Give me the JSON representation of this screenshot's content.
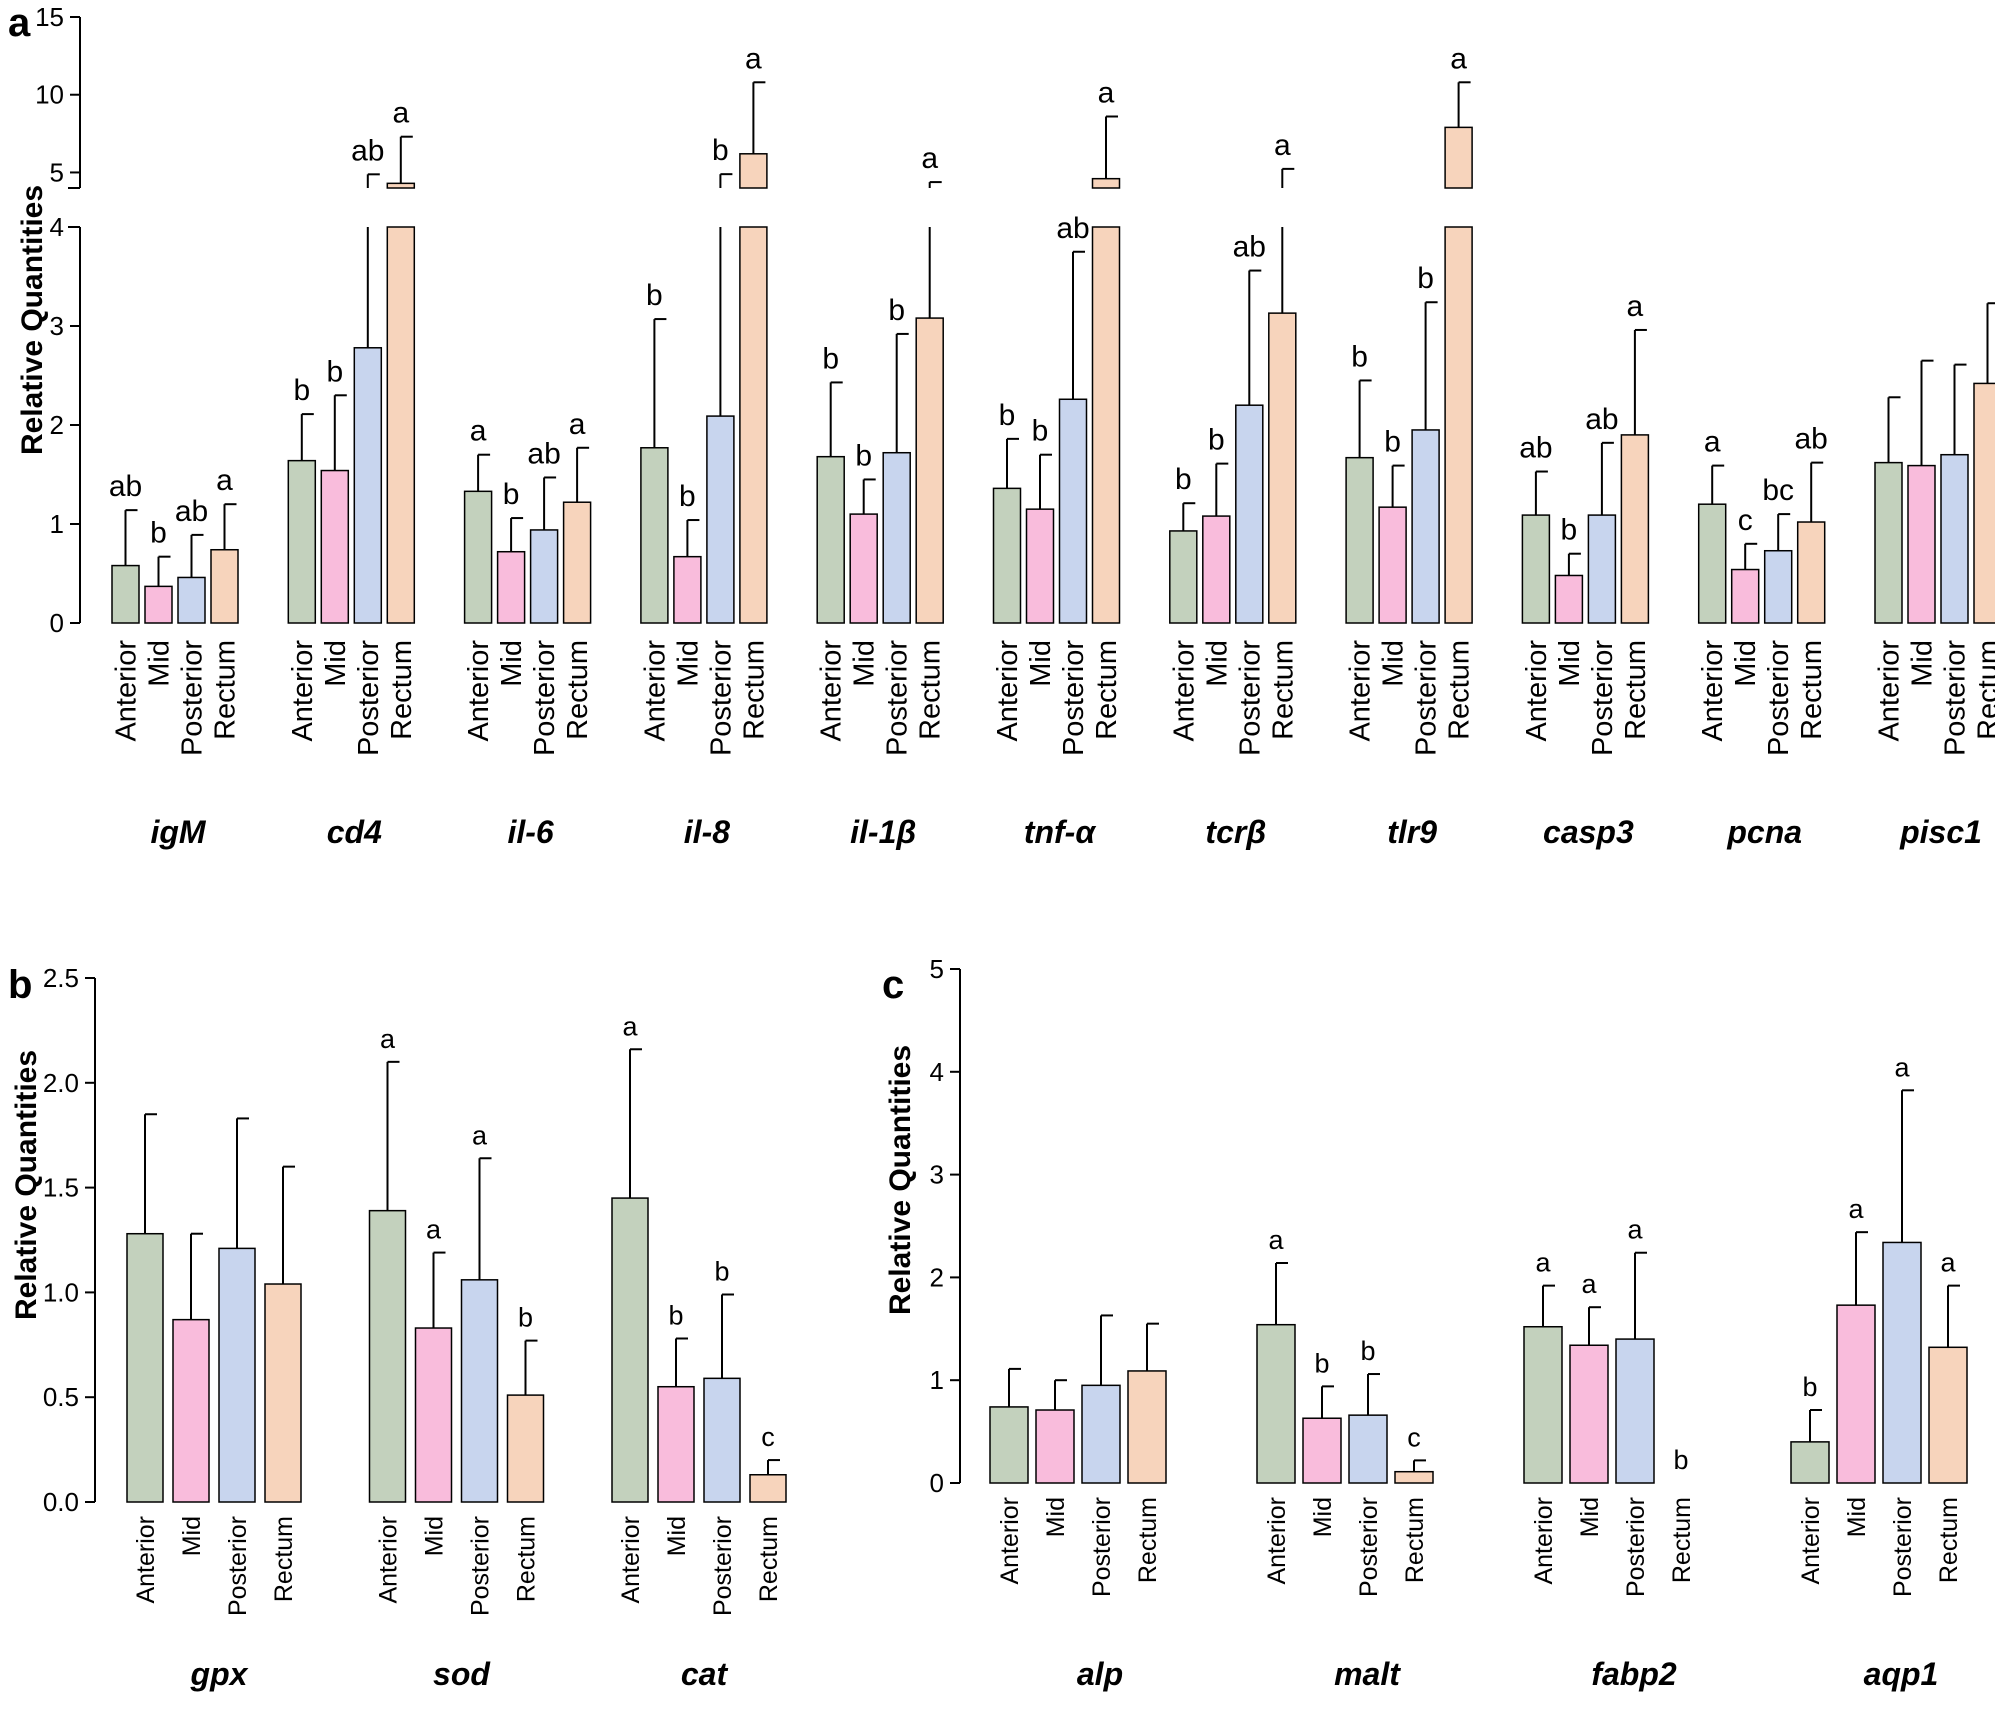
{
  "colors": {
    "Anterior": "#c3d1bd",
    "Mid": "#f9bcdc",
    "Posterior": "#c8d5ee",
    "Rectum": "#f7d4bc"
  },
  "chart_data": [
    {
      "panel": "a",
      "type": "bar",
      "ylabel": "Relative Quantities",
      "y_axis_break": [
        4,
        4
      ],
      "ylim_lower": [
        0,
        4
      ],
      "ylim_upper": [
        4,
        15
      ],
      "yticks_lower": [
        0,
        1,
        2,
        3,
        4
      ],
      "yticks_upper": [
        5,
        10,
        15
      ],
      "series_names": [
        "Anterior",
        "Mid",
        "Posterior",
        "Rectum"
      ],
      "genes": [
        {
          "name": "igM",
          "values": [
            0.58,
            0.37,
            0.46,
            0.74
          ],
          "errors": [
            0.56,
            0.3,
            0.43,
            0.46
          ],
          "labels": [
            "ab",
            "b",
            "ab",
            "a"
          ]
        },
        {
          "name": "cd4",
          "values": [
            1.64,
            1.54,
            2.78,
            4.3
          ],
          "errors": [
            0.47,
            0.76,
            2.1,
            3.0
          ],
          "labels": [
            "b",
            "b",
            "ab",
            "a"
          ]
        },
        {
          "name": "il-6",
          "values": [
            1.33,
            0.72,
            0.94,
            1.22
          ],
          "errors": [
            0.37,
            0.34,
            0.53,
            0.55
          ],
          "labels": [
            "a",
            "b",
            "ab",
            "a"
          ]
        },
        {
          "name": "il-8",
          "values": [
            1.77,
            0.67,
            2.09,
            6.2
          ],
          "errors": [
            1.3,
            0.37,
            2.8,
            4.6
          ],
          "labels": [
            "b",
            "b",
            "b",
            "a"
          ]
        },
        {
          "name": "il-1β",
          "values": [
            1.68,
            1.1,
            1.72,
            3.08
          ],
          "errors": [
            0.75,
            0.35,
            1.2,
            1.3
          ],
          "labels": [
            "b",
            "b",
            "b",
            "a"
          ]
        },
        {
          "name": "tnf-α",
          "values": [
            1.36,
            1.15,
            2.26,
            4.6
          ],
          "errors": [
            0.5,
            0.55,
            1.49,
            4.0
          ],
          "labels": [
            "b",
            "b",
            "ab",
            "a"
          ]
        },
        {
          "name": "tcrβ",
          "values": [
            0.93,
            1.08,
            2.2,
            3.13
          ],
          "errors": [
            0.28,
            0.53,
            1.36,
            2.1
          ],
          "labels": [
            "b",
            "b",
            "ab",
            "a"
          ]
        },
        {
          "name": "tlr9",
          "values": [
            1.67,
            1.17,
            1.95,
            7.9
          ],
          "errors": [
            0.78,
            0.42,
            1.29,
            2.9
          ],
          "labels": [
            "b",
            "b",
            "b",
            "a"
          ]
        },
        {
          "name": "casp3",
          "values": [
            1.09,
            0.48,
            1.09,
            1.9
          ],
          "errors": [
            0.44,
            0.22,
            0.73,
            1.06
          ],
          "labels": [
            "ab",
            "b",
            "ab",
            "a"
          ]
        },
        {
          "name": "pcna",
          "values": [
            1.2,
            0.54,
            0.73,
            1.02
          ],
          "errors": [
            0.39,
            0.26,
            0.37,
            0.6
          ],
          "labels": [
            "a",
            "c",
            "bc",
            "ab"
          ]
        },
        {
          "name": "pisc1",
          "values": [
            1.62,
            1.59,
            1.7,
            2.42
          ],
          "errors": [
            0.66,
            1.06,
            0.91,
            0.81
          ],
          "labels": [
            "",
            "",
            "",
            ""
          ]
        }
      ]
    },
    {
      "panel": "b",
      "type": "bar",
      "ylabel": "Relative Quantities",
      "ylim": [
        0,
        2.5
      ],
      "yticks": [
        "0.0",
        "0.5",
        "1.0",
        "1.5",
        "2.0",
        "2.5"
      ],
      "series_names": [
        "Anterior",
        "Mid",
        "Posterior",
        "Rectum"
      ],
      "genes": [
        {
          "name": "gpx",
          "values": [
            1.28,
            0.87,
            1.21,
            1.04
          ],
          "errors": [
            0.57,
            0.41,
            0.62,
            0.56
          ],
          "labels": [
            "",
            "",
            "",
            ""
          ]
        },
        {
          "name": "sod",
          "values": [
            1.39,
            0.83,
            1.06,
            0.51
          ],
          "errors": [
            0.71,
            0.36,
            0.58,
            0.26
          ],
          "labels": [
            "a",
            "a",
            "a",
            "b"
          ]
        },
        {
          "name": "cat",
          "values": [
            1.45,
            0.55,
            0.59,
            0.13
          ],
          "errors": [
            0.71,
            0.23,
            0.4,
            0.07
          ],
          "labels": [
            "a",
            "b",
            "b",
            "c"
          ]
        }
      ]
    },
    {
      "panel": "c",
      "type": "bar",
      "ylabel": "Relative Quantities",
      "ylim": [
        0,
        5
      ],
      "yticks": [
        "0",
        "1",
        "2",
        "3",
        "4",
        "5"
      ],
      "series_names": [
        "Anterior",
        "Mid",
        "Posterior",
        "Rectum"
      ],
      "genes": [
        {
          "name": "alp",
          "values": [
            0.74,
            0.71,
            0.95,
            1.09
          ],
          "errors": [
            0.37,
            0.29,
            0.68,
            0.46
          ],
          "labels": [
            "",
            "",
            "",
            ""
          ]
        },
        {
          "name": "malt",
          "values": [
            1.54,
            0.63,
            0.66,
            0.11
          ],
          "errors": [
            0.6,
            0.31,
            0.4,
            0.11
          ],
          "labels": [
            "a",
            "b",
            "b",
            "c"
          ]
        },
        {
          "name": "fabp2",
          "values": [
            1.52,
            1.34,
            1.4,
            0.0
          ],
          "errors": [
            0.4,
            0.37,
            0.84,
            0.0
          ],
          "labels": [
            "a",
            "a",
            "a",
            "b"
          ]
        },
        {
          "name": "aqp1",
          "values": [
            0.4,
            1.73,
            2.34,
            1.32
          ],
          "errors": [
            0.31,
            0.71,
            1.48,
            0.6
          ],
          "labels": [
            "b",
            "a",
            "a",
            "a"
          ]
        }
      ]
    }
  ]
}
